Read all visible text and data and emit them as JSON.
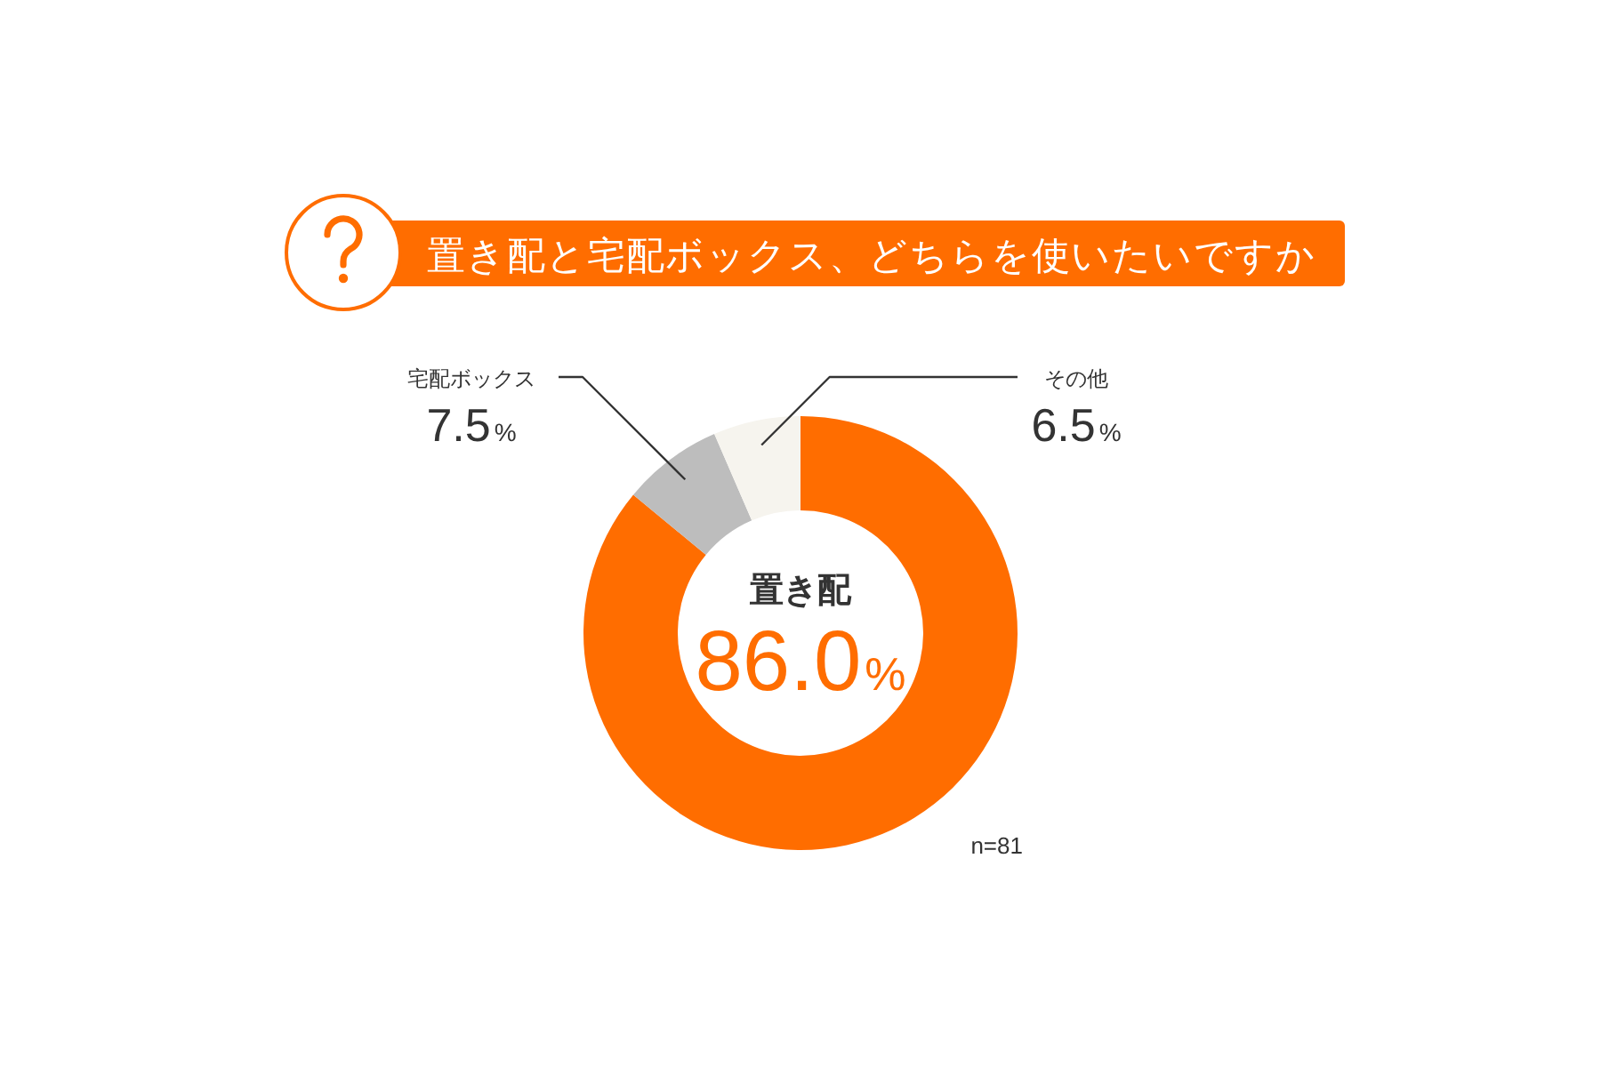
{
  "chart_data": {
    "type": "donut",
    "title": "置き配と宅配ボックス、どちらを使いたいですか",
    "categories": [
      "置き配",
      "宅配ボックス",
      "その他"
    ],
    "values": [
      86.0,
      7.5,
      6.5
    ],
    "colors": [
      "#ff6d00",
      "#bdbdbd",
      "#f6f4ee"
    ],
    "value_labels": [
      "86.0%",
      "7.5%",
      "6.5%"
    ],
    "annotations": [
      "n=81"
    ]
  }
}
